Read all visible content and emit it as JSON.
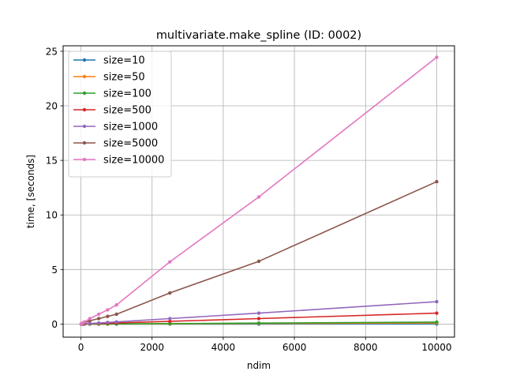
{
  "chart_data": {
    "type": "line",
    "title": "multivariate.make_spline (ID: 0002)",
    "xlabel": "ndim",
    "ylabel": "time, [seconds]",
    "xlim": [
      -500,
      10500
    ],
    "ylim": [
      -1.2,
      25.5
    ],
    "xticks": [
      0,
      2000,
      4000,
      6000,
      8000,
      10000
    ],
    "yticks": [
      0,
      5,
      10,
      15,
      20,
      25
    ],
    "grid": true,
    "legend_position": "top-left",
    "x": [
      10,
      50,
      100,
      250,
      500,
      750,
      1000,
      2500,
      5000,
      10000
    ],
    "series": [
      {
        "name": "size=10",
        "color": "#1f77b4",
        "values": [
          0.0,
          0.0,
          0.0,
          0.0,
          0.0,
          0.0,
          0.0,
          0.0,
          0.0,
          0.01
        ]
      },
      {
        "name": "size=50",
        "color": "#ff7f0e",
        "values": [
          0.0,
          0.0,
          0.0,
          0.0,
          0.0,
          0.0,
          0.01,
          0.02,
          0.05,
          0.1
        ]
      },
      {
        "name": "size=100",
        "color": "#2ca02c",
        "values": [
          0.0,
          0.0,
          0.0,
          0.0,
          0.01,
          0.01,
          0.02,
          0.04,
          0.09,
          0.18
        ]
      },
      {
        "name": "size=500",
        "color": "#d62728",
        "values": [
          0.0,
          0.0,
          0.01,
          0.03,
          0.05,
          0.08,
          0.1,
          0.25,
          0.5,
          1.0
        ]
      },
      {
        "name": "size=1000",
        "color": "#9467bd",
        "values": [
          0.0,
          0.01,
          0.02,
          0.05,
          0.1,
          0.15,
          0.2,
          0.5,
          1.0,
          2.05
        ]
      },
      {
        "name": "size=5000",
        "color": "#8c564b",
        "values": [
          0.0,
          0.05,
          0.1,
          0.3,
          0.5,
          0.7,
          0.9,
          2.85,
          5.75,
          13.05
        ]
      },
      {
        "name": "size=10000",
        "color": "#e377c2",
        "values": [
          0.03,
          0.1,
          0.2,
          0.5,
          0.9,
          1.3,
          1.75,
          5.7,
          11.65,
          24.45
        ]
      }
    ]
  }
}
